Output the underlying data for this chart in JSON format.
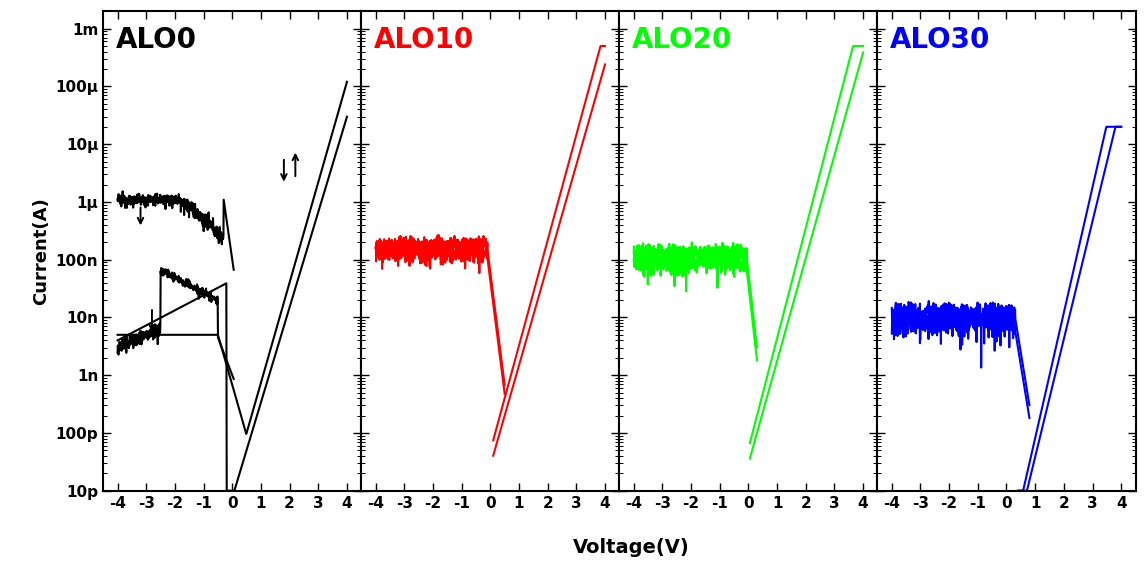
{
  "titles": [
    "ALO0",
    "ALO10",
    "ALO20",
    "ALO30"
  ],
  "title_colors": [
    "black",
    "red",
    "lime",
    "blue"
  ],
  "ylabel": "Current(A)",
  "xlabel": "Voltage(V)",
  "xlim": [
    -4.5,
    4.5
  ],
  "xticks": [
    -4,
    -3,
    -2,
    -1,
    0,
    1,
    2,
    3,
    4
  ],
  "ylim_log": [
    1e-11,
    0.002
  ],
  "ytick_labels": [
    "10p",
    "100p",
    "1n",
    "10n",
    "100n",
    "1μ",
    "10μ",
    "100μ",
    "1m"
  ],
  "ytick_values": [
    1e-11,
    1e-10,
    1e-09,
    1e-08,
    1e-07,
    1e-06,
    1e-05,
    0.0001,
    0.001
  ],
  "background_color": "white",
  "line_width": 1.5
}
